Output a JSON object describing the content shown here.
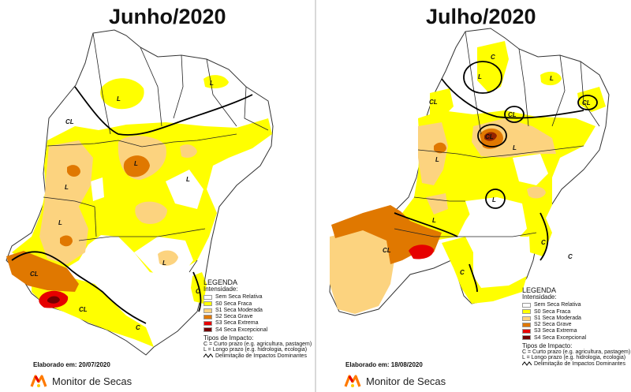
{
  "maps": [
    {
      "title": "Junho/2020",
      "elaborado": "Elaborado em: 20/07/2020",
      "labels": [
        "L",
        "CL",
        "L",
        "L",
        "L",
        "L",
        "L",
        "CL",
        "L",
        "CL",
        "C",
        "C"
      ]
    },
    {
      "title": "Julho/2020",
      "elaborado": "Elaborado em: 18/08/2020",
      "labels": [
        "C",
        "L",
        "L",
        "CL",
        "CL",
        "CL",
        "L",
        "L",
        "CL",
        "L",
        "CL",
        "C",
        "C",
        "L",
        "C"
      ]
    }
  ],
  "legend": {
    "title": "LEGENDA",
    "intensity_label": "Intensidade:",
    "items": [
      {
        "label": "Sem Seca Relativa",
        "color": "#ffffff"
      },
      {
        "label": "S0 Seca Fraca",
        "color": "#ffff00"
      },
      {
        "label": "S1 Seca Moderada",
        "color": "#fcd37f"
      },
      {
        "label": "S2 Seca Grave",
        "color": "#e07800"
      },
      {
        "label": "S3 Seca Extrema",
        "color": "#e60000"
      },
      {
        "label": "S4 Seca Excepcional",
        "color": "#730000"
      }
    ],
    "impact_title": "Tipos de Impacto:",
    "impact_c": "C = Curto prazo (e.g. agricultura, pastagem)",
    "impact_l": "L = Longo prazo (e.g. hidrologia, ecologia)",
    "delimitation": "Delimitação de Impactos Dominantes"
  },
  "brand": {
    "name": "Monitor de Secas",
    "logo_colors": [
      "#ff7a00",
      "#e60000",
      "#ffcc00"
    ]
  }
}
